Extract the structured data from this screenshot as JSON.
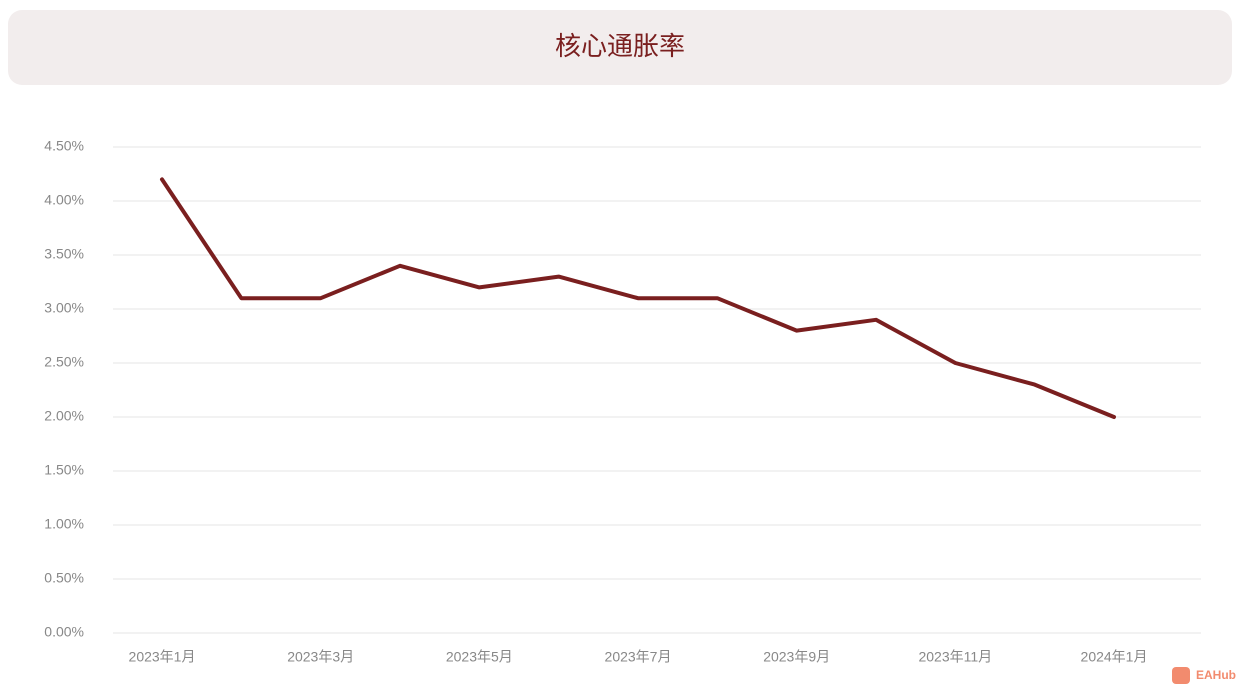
{
  "chart_data": {
    "type": "line",
    "title": "核心通胀率",
    "categories": [
      "2023年1月",
      null,
      "2023年3月",
      null,
      "2023年5月",
      null,
      "2023年7月",
      null,
      "2023年9月",
      null,
      "2023年11月",
      null,
      "2024年1月"
    ],
    "series": [
      {
        "name": "核心通胀率",
        "color": "#7a1f1f",
        "values": [
          4.2,
          3.1,
          3.1,
          3.4,
          3.2,
          3.3,
          3.1,
          3.1,
          2.8,
          2.9,
          2.5,
          2.3,
          2.0
        ]
      }
    ],
    "ylim": [
      0,
      4.5
    ],
    "yticks": [
      {
        "value": 0,
        "label": "0.00%"
      },
      {
        "value": 0.5,
        "label": "0.50%"
      },
      {
        "value": 1,
        "label": "1.00%"
      },
      {
        "value": 1.5,
        "label": "1.50%"
      },
      {
        "value": 2,
        "label": "2.00%"
      },
      {
        "value": 2.5,
        "label": "2.50%"
      },
      {
        "value": 3,
        "label": "3.00%"
      },
      {
        "value": 3.5,
        "label": "3.50%"
      },
      {
        "value": 4,
        "label": "4.00%"
      },
      {
        "value": 4.5,
        "label": "4.50%"
      }
    ],
    "grid": true,
    "watermark": "EAHub"
  }
}
